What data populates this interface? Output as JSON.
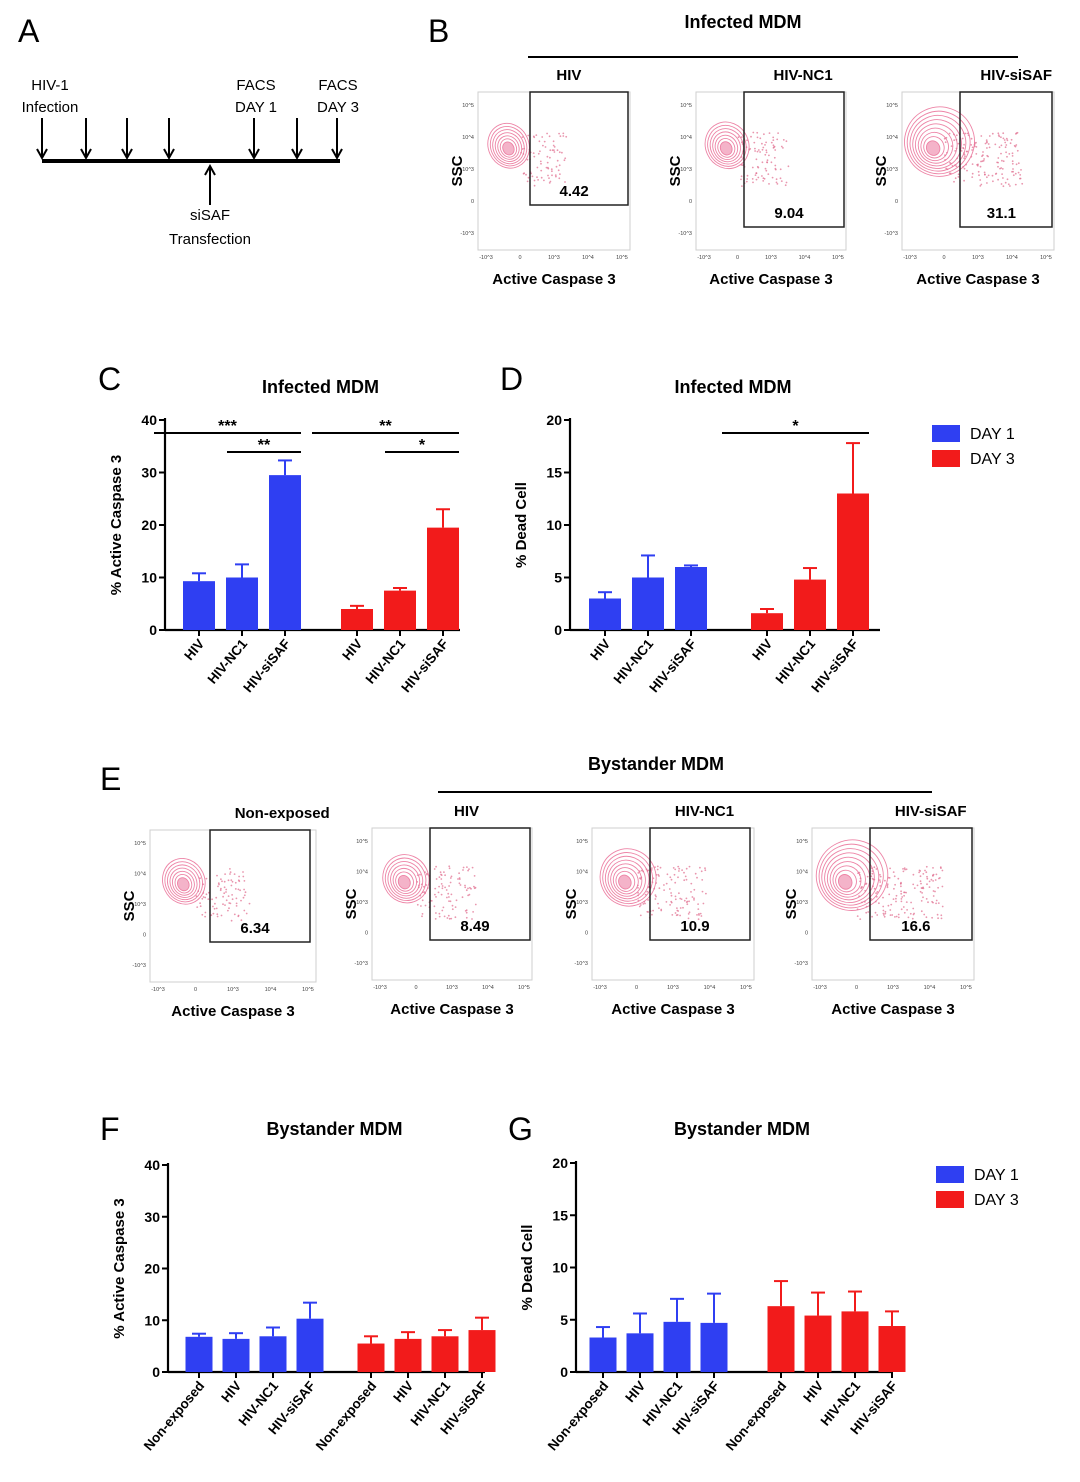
{
  "panels": {
    "A": {
      "letter": "A",
      "labels": {
        "hiv1": "HIV-1",
        "infection": "Infection",
        "facs1": "FACS",
        "day1": "DAY 1",
        "facs3": "FACS",
        "day3": "DAY 3",
        "sisaf": "siSAF",
        "transfection": "Transfection"
      }
    },
    "B": {
      "letter": "B",
      "title": "Infected MDM",
      "plots": [
        {
          "name": "HIV",
          "value": "4.42"
        },
        {
          "name": "HIV-NC1",
          "value": "9.04"
        },
        {
          "name": "HIV-siSAF",
          "value": "31.1"
        }
      ],
      "ylabel": "SSC",
      "xlabel": "Active Caspase 3"
    },
    "E": {
      "letter": "E",
      "title": "Bystander MDM",
      "plots": [
        {
          "name": "Non-exposed",
          "value": "6.34"
        },
        {
          "name": "HIV",
          "value": "8.49"
        },
        {
          "name": "HIV-NC1",
          "value": "10.9"
        },
        {
          "name": "HIV-siSAF",
          "value": "16.6"
        }
      ],
      "ylabel": "SSC",
      "xlabel": "Active Caspase 3"
    }
  },
  "legend": {
    "items": [
      {
        "label": "DAY 1",
        "color": "#2f3ff2"
      },
      {
        "label": "DAY 3",
        "color": "#f21b1b"
      }
    ]
  },
  "flow_axis_ticks": {
    "y": [
      "10^5",
      "10^4",
      "10^3",
      "0",
      "-10^3"
    ],
    "x": [
      "-10^3",
      "0",
      "10^3",
      "10^4",
      "10^5"
    ]
  },
  "chart_data": [
    {
      "panel": "C",
      "type": "bar",
      "title": "Infected MDM",
      "ylabel": "% Active Caspase 3",
      "ylim": [
        0,
        40
      ],
      "yticks": [
        0,
        10,
        20,
        30,
        40
      ],
      "categories": [
        "HIV",
        "HIV-NC1",
        "HIV-siSAF"
      ],
      "series": [
        {
          "name": "DAY 1",
          "values": [
            9.3,
            10.0,
            29.5
          ],
          "errors": [
            1.5,
            2.5,
            2.8
          ]
        },
        {
          "name": "DAY 3",
          "values": [
            4.0,
            7.5,
            19.5
          ],
          "errors": [
            0.6,
            0.5,
            3.5
          ]
        }
      ],
      "significance": [
        {
          "series": 0,
          "from": 0,
          "to": 2,
          "label": "***",
          "level": 0
        },
        {
          "series": 0,
          "from": 1,
          "to": 2,
          "label": "**",
          "level": 1
        },
        {
          "series": 1,
          "from": 0,
          "to": 2,
          "label": "**",
          "level": 0
        },
        {
          "series": 1,
          "from": 1,
          "to": 2,
          "label": "*",
          "level": 1
        }
      ]
    },
    {
      "panel": "D",
      "type": "bar",
      "title": "Infected MDM",
      "ylabel": "% Dead Cell",
      "ylim": [
        0,
        20
      ],
      "yticks": [
        0,
        5,
        10,
        15,
        20
      ],
      "categories": [
        "HIV",
        "HIV-NC1",
        "HIV-siSAF"
      ],
      "series": [
        {
          "name": "DAY 1",
          "values": [
            3.0,
            5.0,
            6.0
          ],
          "errors": [
            0.6,
            2.1,
            0.15
          ]
        },
        {
          "name": "DAY 3",
          "values": [
            1.6,
            4.8,
            13.0
          ],
          "errors": [
            0.4,
            1.1,
            4.8
          ]
        }
      ],
      "significance": [
        {
          "series": 1,
          "from": 0,
          "to": 2,
          "label": "*",
          "level": 0
        }
      ]
    },
    {
      "panel": "F",
      "type": "bar",
      "title": "Bystander MDM",
      "ylabel": "% Active Caspase 3",
      "ylim": [
        0,
        40
      ],
      "yticks": [
        0,
        10,
        20,
        30,
        40
      ],
      "categories": [
        "Non-exposed",
        "HIV",
        "HIV-NC1",
        "HIV-siSAF"
      ],
      "series": [
        {
          "name": "DAY 1",
          "values": [
            6.8,
            6.4,
            6.9,
            10.3
          ],
          "errors": [
            0.6,
            1.1,
            1.7,
            3.1
          ]
        },
        {
          "name": "DAY 3",
          "values": [
            5.5,
            6.4,
            6.9,
            8.1
          ],
          "errors": [
            1.4,
            1.3,
            1.2,
            2.4
          ]
        }
      ],
      "significance": []
    },
    {
      "panel": "G",
      "type": "bar",
      "title": "Bystander MDM",
      "ylabel": "% Dead Cell",
      "ylim": [
        0,
        20
      ],
      "yticks": [
        0,
        5,
        10,
        15,
        20
      ],
      "categories": [
        "Non-exposed",
        "HIV",
        "HIV-NC1",
        "HIV-siSAF"
      ],
      "series": [
        {
          "name": "DAY 1",
          "values": [
            3.3,
            3.7,
            4.8,
            4.7
          ],
          "errors": [
            1.0,
            1.9,
            2.2,
            2.8
          ]
        },
        {
          "name": "DAY 3",
          "values": [
            6.3,
            5.4,
            5.8,
            4.4
          ],
          "errors": [
            2.4,
            2.2,
            1.9,
            1.4
          ]
        }
      ],
      "significance": []
    }
  ]
}
